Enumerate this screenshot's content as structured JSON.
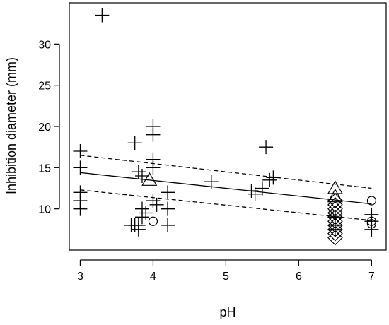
{
  "chart_data": {
    "type": "scatter",
    "xlabel": "pH",
    "ylabel": "Inhibition diameter (mm)",
    "xlim": [
      2.85,
      7.2
    ],
    "ylim": [
      5.0,
      35.0
    ],
    "x_ticks": [
      3,
      4,
      5,
      6,
      7
    ],
    "y_ticks": [
      10,
      15,
      20,
      25,
      30
    ],
    "x_tick_labels": [
      "3",
      "4",
      "5",
      "6",
      "7"
    ],
    "y_tick_labels": [
      "10",
      "15",
      "20",
      "25",
      "30"
    ],
    "grid": false,
    "legend": "none",
    "series": [
      {
        "marker": "plus",
        "points": [
          {
            "x": 3.0,
            "y": 17.0
          },
          {
            "x": 3.0,
            "y": 15.0
          },
          {
            "x": 3.0,
            "y": 12.0
          },
          {
            "x": 3.0,
            "y": 11.0
          },
          {
            "x": 3.0,
            "y": 10.0
          },
          {
            "x": 3.3,
            "y": 33.5
          },
          {
            "x": 3.75,
            "y": 18.0
          },
          {
            "x": 3.8,
            "y": 14.5
          },
          {
            "x": 3.85,
            "y": 14.0
          },
          {
            "x": 3.7,
            "y": 8.0
          },
          {
            "x": 3.75,
            "y": 8.0
          },
          {
            "x": 3.8,
            "y": 8.0
          },
          {
            "x": 3.85,
            "y": 9.0
          },
          {
            "x": 3.9,
            "y": 9.5
          },
          {
            "x": 3.85,
            "y": 10.0
          },
          {
            "x": 3.8,
            "y": 7.5
          },
          {
            "x": 4.0,
            "y": 20.0
          },
          {
            "x": 4.0,
            "y": 19.0
          },
          {
            "x": 4.0,
            "y": 16.0
          },
          {
            "x": 4.0,
            "y": 15.0
          },
          {
            "x": 4.0,
            "y": 11.0
          },
          {
            "x": 4.05,
            "y": 10.5
          },
          {
            "x": 4.2,
            "y": 12.0
          },
          {
            "x": 4.2,
            "y": 10.0
          },
          {
            "x": 4.2,
            "y": 8.0
          },
          {
            "x": 4.8,
            "y": 13.3
          },
          {
            "x": 5.35,
            "y": 12.2
          },
          {
            "x": 5.4,
            "y": 11.8
          },
          {
            "x": 5.5,
            "y": 12.5
          },
          {
            "x": 5.55,
            "y": 17.5
          },
          {
            "x": 5.6,
            "y": 13.5
          },
          {
            "x": 5.65,
            "y": 13.8
          },
          {
            "x": 6.5,
            "y": 9.0
          },
          {
            "x": 6.5,
            "y": 8.0
          },
          {
            "x": 6.5,
            "y": 7.5
          },
          {
            "x": 7.0,
            "y": 9.3
          },
          {
            "x": 7.0,
            "y": 8.5
          },
          {
            "x": 7.0,
            "y": 7.5
          }
        ]
      },
      {
        "marker": "triangle",
        "points": [
          {
            "x": 3.95,
            "y": 13.5
          },
          {
            "x": 6.5,
            "y": 12.5
          },
          {
            "x": 6.5,
            "y": 11.5
          }
        ]
      },
      {
        "marker": "diamond",
        "points": [
          {
            "x": 6.5,
            "y": 11.0
          },
          {
            "x": 6.5,
            "y": 10.5
          },
          {
            "x": 6.5,
            "y": 10.0
          },
          {
            "x": 6.5,
            "y": 9.5
          },
          {
            "x": 6.5,
            "y": 9.0
          },
          {
            "x": 6.5,
            "y": 8.5
          },
          {
            "x": 6.5,
            "y": 8.0
          },
          {
            "x": 6.5,
            "y": 7.5
          },
          {
            "x": 6.5,
            "y": 7.0
          },
          {
            "x": 6.5,
            "y": 6.5
          }
        ]
      },
      {
        "marker": "circle",
        "points": [
          {
            "x": 4.0,
            "y": 8.5
          },
          {
            "x": 7.0,
            "y": 11.0
          },
          {
            "x": 7.0,
            "y": 8.5
          },
          {
            "x": 7.0,
            "y": 8.2
          }
        ]
      }
    ],
    "fit_line": {
      "style": "solid",
      "x": [
        3.0,
        7.0
      ],
      "y": [
        14.4,
        10.6
      ]
    },
    "confidence_bands": [
      {
        "style": "dashed",
        "x": [
          3.0,
          7.0
        ],
        "y": [
          16.5,
          12.5
        ]
      },
      {
        "style": "dashed",
        "x": [
          3.0,
          7.0
        ],
        "y": [
          12.3,
          8.6
        ]
      }
    ]
  }
}
